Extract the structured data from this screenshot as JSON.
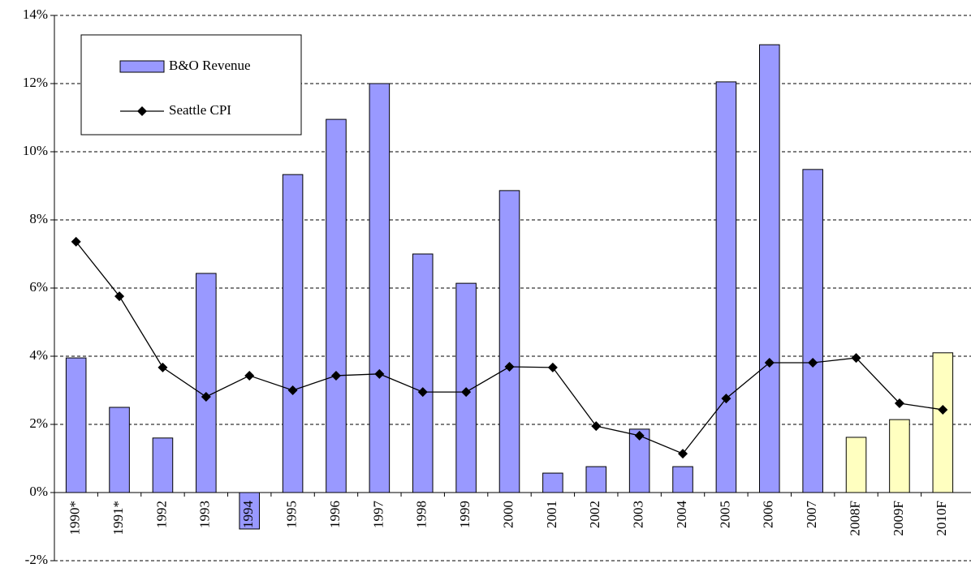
{
  "chart_data": {
    "type": "bar-line",
    "categories": [
      "1990*",
      "1991*",
      "1992",
      "1993",
      "1994",
      "1995",
      "1996",
      "1997",
      "1998",
      "1999",
      "2000",
      "2001",
      "2002",
      "2003",
      "2004",
      "2005",
      "2006",
      "2007",
      "2008F",
      "2009F",
      "2010F"
    ],
    "series": [
      {
        "name": "B&O Revenue",
        "type": "bar",
        "color": "#9999ff",
        "colors": [
          "#9999ff",
          "#9999ff",
          "#9999ff",
          "#9999ff",
          "#9999ff",
          "#9999ff",
          "#9999ff",
          "#9999ff",
          "#9999ff",
          "#9999ff",
          "#9999ff",
          "#9999ff",
          "#9999ff",
          "#9999ff",
          "#9999ff",
          "#9999ff",
          "#9999ff",
          "#9999ff",
          "#ffffc0",
          "#ffffc0",
          "#ffffc0"
        ],
        "values": [
          3.95,
          2.5,
          1.6,
          6.43,
          -1.07,
          9.33,
          10.95,
          12.0,
          7.0,
          6.14,
          8.86,
          0.57,
          0.76,
          1.86,
          0.76,
          12.05,
          13.14,
          9.48,
          1.62,
          2.14,
          4.1
        ]
      },
      {
        "name": "Seattle CPI",
        "type": "line",
        "color": "#000000",
        "values": [
          7.36,
          5.76,
          3.67,
          2.81,
          3.43,
          3.0,
          3.43,
          3.48,
          2.95,
          2.95,
          3.69,
          3.67,
          1.95,
          1.67,
          1.14,
          2.76,
          3.81,
          3.81,
          3.95,
          2.62,
          2.43
        ]
      }
    ],
    "ylim": [
      -2,
      14
    ],
    "yticks": [
      {
        "value": -2,
        "label": "-2%"
      },
      {
        "value": 0,
        "label": "0%"
      },
      {
        "value": 2,
        "label": "2%"
      },
      {
        "value": 4,
        "label": "4%"
      },
      {
        "value": 6,
        "label": "6%"
      },
      {
        "value": 8,
        "label": "8%"
      },
      {
        "value": 10,
        "label": "10%"
      },
      {
        "value": 12,
        "label": "12%"
      },
      {
        "value": 14,
        "label": "14%"
      }
    ],
    "grid": true,
    "legend": "top-left"
  }
}
